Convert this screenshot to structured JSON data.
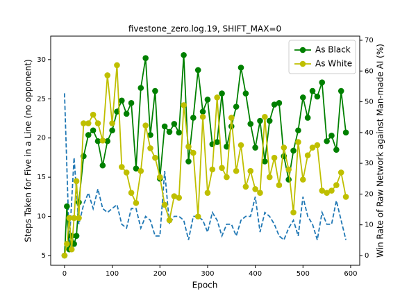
{
  "chart_data": {
    "type": "line",
    "title": "fivestone_zero.log.19, SHIFT_MAX=0",
    "xlabel": "Epoch",
    "ylabel": "Steps Taken for Five in a Line (no opponent)",
    "y2label": "Win Rate of Raw Network against Man-made AI (%)",
    "xlim": [
      -29,
      619
    ],
    "xticks": [
      0,
      100,
      200,
      300,
      400,
      500,
      600
    ],
    "ylim": [
      3.76,
      33.0
    ],
    "yticks": [
      5,
      10,
      15,
      20,
      25,
      30
    ],
    "y2lim": [
      -3.16,
      71.35
    ],
    "y2ticks": [
      0,
      10,
      20,
      30,
      40,
      50,
      60,
      70
    ],
    "legend": "upper right",
    "series": [
      {
        "color": "#1f77b4",
        "style": "dashed",
        "axis": "y",
        "x": [
          0,
          10,
          20,
          30,
          40,
          50,
          60,
          70,
          80,
          90,
          100,
          110,
          120,
          130,
          140,
          150,
          160,
          170,
          180,
          190,
          200,
          210,
          220,
          230,
          240,
          250,
          260,
          270,
          280,
          290,
          300,
          310,
          320,
          330,
          340,
          350,
          360,
          370,
          380,
          390,
          400,
          410,
          420,
          430,
          440,
          450,
          460,
          470,
          480,
          490,
          500,
          510,
          520,
          530,
          540,
          550,
          560,
          570,
          580,
          590
        ],
        "values": [
          25.7,
          6.5,
          17.5,
          9,
          11.5,
          13,
          11,
          13.5,
          11,
          10.5,
          11,
          11.5,
          9,
          8.5,
          11,
          11,
          8.5,
          10,
          9.5,
          7.5,
          7.5,
          15.8,
          9,
          10,
          10,
          9.5,
          7,
          10,
          10,
          9.5,
          8,
          10.5,
          9.5,
          7.5,
          9,
          9,
          7.5,
          9.5,
          10,
          10,
          12.5,
          8,
          10.5,
          10,
          9,
          7.5,
          7,
          8.5,
          9.5,
          7.5,
          12.5,
          10,
          9,
          7,
          10.5,
          9,
          9,
          12,
          9.5,
          7
        ]
      },
      {
        "name": "As Black",
        "color": "#008000",
        "marker": "o",
        "axis": "y2",
        "x": [
          0,
          5,
          10,
          15,
          20,
          25,
          30,
          40,
          50,
          60,
          70,
          80,
          90,
          100,
          110,
          120,
          130,
          140,
          150,
          160,
          170,
          180,
          190,
          200,
          210,
          220,
          230,
          240,
          250,
          260,
          270,
          280,
          290,
          300,
          310,
          320,
          330,
          340,
          350,
          360,
          370,
          380,
          390,
          400,
          410,
          420,
          430,
          440,
          450,
          460,
          470,
          480,
          490,
          500,
          510,
          520,
          530,
          540,
          550,
          560,
          570,
          580,
          590
        ],
        "values": [
          0,
          16,
          2,
          6.4,
          3.8,
          6.4,
          17.3,
          32.3,
          39.2,
          40.7,
          37.2,
          29.3,
          37.2,
          40.7,
          46.8,
          50.4,
          46.1,
          49.6,
          28.3,
          54.5,
          64.2,
          39.2,
          53.5,
          25,
          42,
          40.2,
          42.8,
          40,
          65.2,
          30.6,
          44.8,
          60.3,
          46.8,
          50.7,
          36.2,
          36.9,
          52.7,
          35.4,
          42,
          48.4,
          61.1,
          52.7,
          42.8,
          35.1,
          43.8,
          30.6,
          43.8,
          49.1,
          49.6,
          32.3,
          24.7,
          34.1,
          40.7,
          51.4,
          44.8,
          53.5,
          51.7,
          56.3,
          37.2,
          39,
          34.4,
          53.5,
          40
        ]
      },
      {
        "name": "As White",
        "color": "#bfbf00",
        "marker": "o",
        "axis": "y2",
        "x": [
          0,
          5,
          10,
          15,
          20,
          25,
          30,
          40,
          50,
          60,
          70,
          80,
          90,
          100,
          110,
          120,
          130,
          140,
          150,
          160,
          170,
          180,
          190,
          200,
          210,
          220,
          230,
          240,
          250,
          260,
          270,
          280,
          290,
          300,
          310,
          320,
          330,
          340,
          350,
          360,
          370,
          380,
          390,
          400,
          410,
          420,
          430,
          440,
          450,
          460,
          470,
          480,
          490,
          500,
          510,
          520,
          530,
          540,
          550,
          560,
          570,
          580,
          590
        ],
        "values": [
          0,
          3.8,
          12.2,
          2,
          12.2,
          24.2,
          12.2,
          43,
          43,
          45.8,
          43,
          37.4,
          58.6,
          43,
          61.9,
          28.8,
          27,
          20.4,
          17.1,
          27.5,
          42.3,
          34.9,
          31.8,
          25.5,
          16.5,
          11.5,
          19.3,
          18.8,
          48.9,
          35.4,
          33.4,
          12.7,
          45.1,
          20.4,
          28,
          51.4,
          28.5,
          25.5,
          44.8,
          27.5,
          35.9,
          22.4,
          27.5,
          21.6,
          20.4,
          45.1,
          25.5,
          31.8,
          22.9,
          35.1,
          28,
          14,
          36.9,
          24.7,
          32.6,
          35.1,
          35.9,
          21.1,
          20.4,
          21.1,
          22.9,
          27,
          19.1
        ]
      }
    ]
  }
}
